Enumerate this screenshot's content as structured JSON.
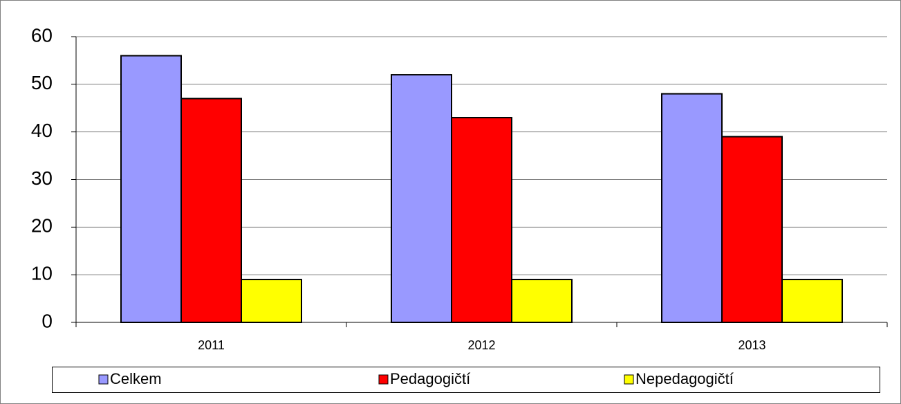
{
  "chart_data": {
    "type": "bar",
    "categories": [
      "2011",
      "2012",
      "2013"
    ],
    "series": [
      {
        "name": "Celkem",
        "color": "#9999ff",
        "values": [
          56,
          52,
          48
        ]
      },
      {
        "name": "Pedagogičtí",
        "color": "#ff0000",
        "values": [
          47,
          43,
          39
        ]
      },
      {
        "name": "Nepedagogičtí",
        "color": "#ffff00",
        "values": [
          9,
          9,
          9
        ]
      }
    ],
    "ylim": [
      0,
      60
    ],
    "yticks": [
      0,
      10,
      20,
      30,
      40,
      50,
      60
    ],
    "grid": true,
    "legend": "bottom"
  }
}
